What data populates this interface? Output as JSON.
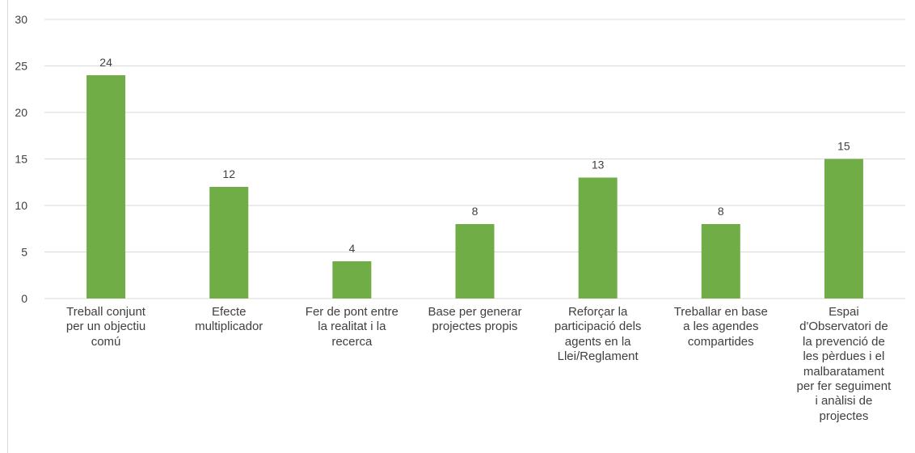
{
  "chart_data": {
    "type": "bar",
    "categories": [
      "Treball conjunt\nper un objectiu\ncomú",
      "Efecte\nmultiplicador",
      "Fer de pont entre\nla realitat i la\nrecerca",
      "Base per generar\nprojectes propis",
      "Reforçar la\nparticipació dels\nagents en la\nLlei/Reglament",
      "Treballar en base\na les agendes\ncompartides",
      "Espai\nd'Observatori de\nla prevenció de\nles pèrdues i el\nmalbaratament\nper fer seguiment\ni anàlisi de\nprojectes"
    ],
    "values": [
      24,
      12,
      4,
      8,
      13,
      8,
      15
    ],
    "data_labels": [
      "24",
      "12",
      "4",
      "8",
      "13",
      "8",
      "15"
    ],
    "ylim": [
      0,
      30
    ],
    "yticks": [
      "0",
      "5",
      "10",
      "15",
      "20",
      "25",
      "30"
    ],
    "grid": true,
    "legend": "none",
    "bar_color": "#70ad47",
    "grid_color": "#d9d9d9",
    "text_color": "#404040"
  }
}
